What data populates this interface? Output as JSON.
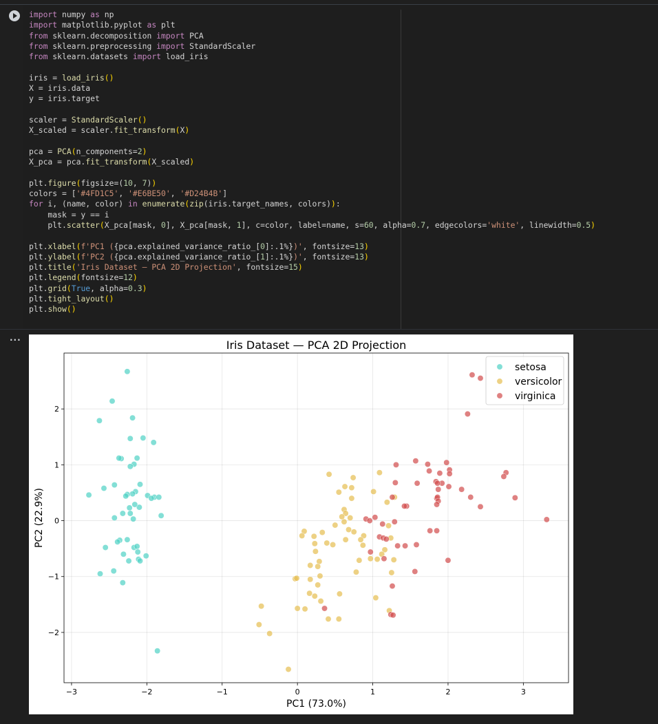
{
  "code_lines": [
    [
      [
        "kw",
        "import"
      ],
      [
        "t",
        " numpy "
      ],
      [
        "kw",
        "as"
      ],
      [
        "t",
        " np"
      ]
    ],
    [
      [
        "kw",
        "import"
      ],
      [
        "t",
        " matplotlib.pyplot "
      ],
      [
        "kw",
        "as"
      ],
      [
        "t",
        " plt"
      ]
    ],
    [
      [
        "kw",
        "from"
      ],
      [
        "t",
        " sklearn.decomposition "
      ],
      [
        "kw",
        "import"
      ],
      [
        "t",
        " PCA"
      ]
    ],
    [
      [
        "kw",
        "from"
      ],
      [
        "t",
        " sklearn.preprocessing "
      ],
      [
        "kw",
        "import"
      ],
      [
        "t",
        " StandardScaler"
      ]
    ],
    [
      [
        "kw",
        "from"
      ],
      [
        "t",
        " sklearn.datasets "
      ],
      [
        "kw",
        "import"
      ],
      [
        "t",
        " load_iris"
      ]
    ],
    [],
    [
      [
        "t",
        "iris = "
      ],
      [
        "bi",
        "load_iris"
      ],
      [
        "par",
        "()"
      ]
    ],
    [
      [
        "t",
        "X = iris.data"
      ]
    ],
    [
      [
        "t",
        "y = iris.target"
      ]
    ],
    [],
    [
      [
        "t",
        "scaler = "
      ],
      [
        "bi",
        "StandardScaler"
      ],
      [
        "par",
        "()"
      ]
    ],
    [
      [
        "t",
        "X_scaled = scaler."
      ],
      [
        "bi",
        "fit_transform"
      ],
      [
        "par",
        "("
      ],
      [
        "t",
        "X"
      ],
      [
        "par",
        ")"
      ]
    ],
    [],
    [
      [
        "t",
        "pca = "
      ],
      [
        "bi",
        "PCA"
      ],
      [
        "par",
        "("
      ],
      [
        "t",
        "n_components="
      ],
      [
        "num",
        "2"
      ],
      [
        "par",
        ")"
      ]
    ],
    [
      [
        "t",
        "X_pca = pca."
      ],
      [
        "bi",
        "fit_transform"
      ],
      [
        "par",
        "("
      ],
      [
        "t",
        "X_scaled"
      ],
      [
        "par",
        ")"
      ]
    ],
    [],
    [
      [
        "t",
        "plt."
      ],
      [
        "bi",
        "figure"
      ],
      [
        "par",
        "("
      ],
      [
        "t",
        "figsize=("
      ],
      [
        "num",
        "10"
      ],
      [
        "t",
        ", "
      ],
      [
        "num",
        "7"
      ],
      [
        "t",
        ")"
      ],
      [
        "par",
        ")"
      ]
    ],
    [
      [
        "t",
        "colors = ["
      ],
      [
        "str",
        "'#4FD1C5'"
      ],
      [
        "t",
        ", "
      ],
      [
        "str",
        "'#E6BE50'"
      ],
      [
        "t",
        ", "
      ],
      [
        "str",
        "'#D24B4B'"
      ],
      [
        "t",
        "]"
      ]
    ],
    [
      [
        "kw",
        "for"
      ],
      [
        "t",
        " i, (name, color) "
      ],
      [
        "kw",
        "in"
      ],
      [
        "t",
        " "
      ],
      [
        "bi",
        "enumerate"
      ],
      [
        "par",
        "("
      ],
      [
        "bi",
        "zip"
      ],
      [
        "t",
        "(iris.target_names, colors)"
      ],
      [
        "par",
        ")"
      ],
      [
        "t",
        ":"
      ]
    ],
    [
      [
        "t",
        "    mask = y == i"
      ]
    ],
    [
      [
        "t",
        "    plt."
      ],
      [
        "bi",
        "scatter"
      ],
      [
        "par",
        "("
      ],
      [
        "t",
        "X_pca[mask, "
      ],
      [
        "num",
        "0"
      ],
      [
        "t",
        "], X_pca[mask, "
      ],
      [
        "num",
        "1"
      ],
      [
        "t",
        "], c=color, label=name, s="
      ],
      [
        "num",
        "60"
      ],
      [
        "t",
        ", alpha="
      ],
      [
        "num",
        "0.7"
      ],
      [
        "t",
        ", edgecolors="
      ],
      [
        "str",
        "'white'"
      ],
      [
        "t",
        ", linewidth="
      ],
      [
        "num",
        "0.5"
      ],
      [
        "par",
        ")"
      ]
    ],
    [],
    [
      [
        "t",
        "plt."
      ],
      [
        "bi",
        "xlabel"
      ],
      [
        "par",
        "("
      ],
      [
        "str",
        "f'PC1 ("
      ],
      [
        "t",
        "{pca.explained_variance_ratio_["
      ],
      [
        "num",
        "0"
      ],
      [
        "t",
        "]:.1%}"
      ],
      [
        "str",
        ")'"
      ],
      [
        "t",
        ", fontsize="
      ],
      [
        "num",
        "13"
      ],
      [
        "par",
        ")"
      ]
    ],
    [
      [
        "t",
        "plt."
      ],
      [
        "bi",
        "ylabel"
      ],
      [
        "par",
        "("
      ],
      [
        "str",
        "f'PC2 ("
      ],
      [
        "t",
        "{pca.explained_variance_ratio_["
      ],
      [
        "num",
        "1"
      ],
      [
        "t",
        "]:.1%}"
      ],
      [
        "str",
        ")'"
      ],
      [
        "t",
        ", fontsize="
      ],
      [
        "num",
        "13"
      ],
      [
        "par",
        ")"
      ]
    ],
    [
      [
        "t",
        "plt."
      ],
      [
        "bi",
        "title"
      ],
      [
        "par",
        "("
      ],
      [
        "str",
        "'Iris Dataset — PCA 2D Projection'"
      ],
      [
        "t",
        ", fontsize="
      ],
      [
        "num",
        "15"
      ],
      [
        "par",
        ")"
      ]
    ],
    [
      [
        "t",
        "plt."
      ],
      [
        "bi",
        "legend"
      ],
      [
        "par",
        "("
      ],
      [
        "t",
        "fontsize="
      ],
      [
        "num",
        "12"
      ],
      [
        "par",
        ")"
      ]
    ],
    [
      [
        "t",
        "plt."
      ],
      [
        "bi",
        "grid"
      ],
      [
        "par",
        "("
      ],
      [
        "const",
        "True"
      ],
      [
        "t",
        ", alpha="
      ],
      [
        "num",
        "0.3"
      ],
      [
        "par",
        ")"
      ]
    ],
    [
      [
        "t",
        "plt."
      ],
      [
        "bi",
        "tight_layout"
      ],
      [
        "par",
        "()"
      ]
    ],
    [
      [
        "t",
        "plt."
      ],
      [
        "bi",
        "show"
      ],
      [
        "par",
        "()"
      ]
    ]
  ],
  "output": {
    "ellipsis": "..."
  },
  "chart_data": {
    "type": "scatter",
    "title": "Iris Dataset — PCA 2D Projection",
    "xlabel": "PC1 (73.0%)",
    "ylabel": "PC2 (22.9%)",
    "xlim": [
      -3.1,
      3.6
    ],
    "ylim": [
      -2.9,
      3.0
    ],
    "xticks": [
      -3,
      -2,
      -1,
      0,
      1,
      2,
      3
    ],
    "yticks": [
      -2,
      -1,
      0,
      1,
      2
    ],
    "xtick_labels": [
      "−3",
      "−2",
      "−1",
      "0",
      "1",
      "2",
      "3"
    ],
    "ytick_labels": [
      "−2",
      "−1",
      "0",
      "1",
      "2"
    ],
    "grid": true,
    "legend_position": "top-right",
    "series": [
      {
        "name": "setosa",
        "color": "#4FD1C5",
        "points": [
          [
            -2.26,
            2.67
          ],
          [
            -2.46,
            2.14
          ],
          [
            -2.63,
            1.79
          ],
          [
            -2.19,
            1.84
          ],
          [
            -2.05,
            1.48
          ],
          [
            -1.91,
            1.4
          ],
          [
            -2.22,
            1.47
          ],
          [
            -2.34,
            1.11
          ],
          [
            -2.37,
            1.12
          ],
          [
            -2.13,
            1.12
          ],
          [
            -2.17,
            1.01
          ],
          [
            -2.22,
            0.97
          ],
          [
            -2.09,
            0.65
          ],
          [
            -2.43,
            0.64
          ],
          [
            -2.57,
            0.58
          ],
          [
            -2.15,
            0.52
          ],
          [
            -2.19,
            0.48
          ],
          [
            -2.26,
            0.47
          ],
          [
            -2.28,
            0.44
          ],
          [
            -2.77,
            0.46
          ],
          [
            -1.99,
            0.45
          ],
          [
            -1.9,
            0.42
          ],
          [
            -1.84,
            0.42
          ],
          [
            -1.94,
            0.4
          ],
          [
            -2.1,
            0.24
          ],
          [
            -2.23,
            0.23
          ],
          [
            -2.16,
            0.29
          ],
          [
            -2.22,
            0.13
          ],
          [
            -2.32,
            0.13
          ],
          [
            -2.43,
            0.05
          ],
          [
            -2.18,
            0.03
          ],
          [
            -1.81,
            0.09
          ],
          [
            -2.36,
            -0.35
          ],
          [
            -2.26,
            -0.34
          ],
          [
            -2.39,
            -0.38
          ],
          [
            -2.17,
            -0.48
          ],
          [
            -2.13,
            -0.46
          ],
          [
            -2.55,
            -0.48
          ],
          [
            -2.31,
            -0.6
          ],
          [
            -2.12,
            -0.56
          ],
          [
            -2.01,
            -0.63
          ],
          [
            -2.11,
            -0.69
          ],
          [
            -2.09,
            -0.72
          ],
          [
            -2.24,
            -0.72
          ],
          [
            -2.62,
            -0.95
          ],
          [
            -2.44,
            -0.9
          ],
          [
            -2.32,
            -1.11
          ],
          [
            -1.86,
            -2.33
          ]
        ]
      },
      {
        "name": "versicolor",
        "color": "#E6BE50",
        "points": [
          [
            0.42,
            0.83
          ],
          [
            0.74,
            0.77
          ],
          [
            1.09,
            0.86
          ],
          [
            0.72,
            0.59
          ],
          [
            0.55,
            0.51
          ],
          [
            0.72,
            0.4
          ],
          [
            0.63,
            0.61
          ],
          [
            1.01,
            0.52
          ],
          [
            1.19,
            0.33
          ],
          [
            1.29,
            0.42
          ],
          [
            0.62,
            0.2
          ],
          [
            0.64,
            0.13
          ],
          [
            0.62,
            -0.02
          ],
          [
            0.7,
            0.05
          ],
          [
            0.59,
            0.07
          ],
          [
            0.5,
            -0.08
          ],
          [
            0.68,
            -0.16
          ],
          [
            0.75,
            -0.2
          ],
          [
            0.88,
            -0.27
          ],
          [
            0.33,
            -0.21
          ],
          [
            0.09,
            -0.19
          ],
          [
            0.06,
            -0.27
          ],
          [
            0.22,
            -0.28
          ],
          [
            0.23,
            -0.41
          ],
          [
            0.39,
            -0.4
          ],
          [
            0.47,
            -0.43
          ],
          [
            0.64,
            -0.34
          ],
          [
            0.84,
            -0.34
          ],
          [
            0.87,
            -0.44
          ],
          [
            1.21,
            -0.09
          ],
          [
            1.24,
            -0.31
          ],
          [
            1.16,
            -0.52
          ],
          [
            1.12,
            -0.6
          ],
          [
            1.28,
            -0.7
          ],
          [
            1.25,
            -0.93
          ],
          [
            1.06,
            -0.69
          ],
          [
            0.97,
            -0.68
          ],
          [
            0.82,
            -0.71
          ],
          [
            0.78,
            -0.92
          ],
          [
            0.24,
            -0.55
          ],
          [
            0.29,
            -0.73
          ],
          [
            0.17,
            -0.8
          ],
          [
            0.27,
            -0.82
          ],
          [
            0.3,
            -0.99
          ],
          [
            0.17,
            -1.05
          ],
          [
            -0.03,
            -1.04
          ],
          [
            -0.01,
            -1.03
          ],
          [
            0.27,
            -1.15
          ],
          [
            0.16,
            -1.3
          ],
          [
            0.23,
            -1.35
          ],
          [
            0.0,
            -1.57
          ],
          [
            0.1,
            -1.58
          ],
          [
            0.31,
            -1.44
          ],
          [
            0.56,
            -1.31
          ],
          [
            1.04,
            -1.38
          ],
          [
            0.41,
            -1.76
          ],
          [
            0.55,
            -1.76
          ],
          [
            -0.48,
            -1.53
          ],
          [
            -0.51,
            -1.86
          ],
          [
            -0.37,
            -2.02
          ],
          [
            1.22,
            -1.61
          ],
          [
            -0.12,
            -2.66
          ]
        ]
      },
      {
        "name": "virginica",
        "color": "#D24B4B",
        "points": [
          [
            2.32,
            2.61
          ],
          [
            2.43,
            2.55
          ],
          [
            2.26,
            1.91
          ],
          [
            1.57,
            1.07
          ],
          [
            1.98,
            1.04
          ],
          [
            1.73,
            1.01
          ],
          [
            1.31,
            1.0
          ],
          [
            1.75,
            0.89
          ],
          [
            2.02,
            0.91
          ],
          [
            2.02,
            0.84
          ],
          [
            1.89,
            0.85
          ],
          [
            2.77,
            0.86
          ],
          [
            2.74,
            0.79
          ],
          [
            1.84,
            0.7
          ],
          [
            1.92,
            0.67
          ],
          [
            1.86,
            0.67
          ],
          [
            1.59,
            0.67
          ],
          [
            1.3,
            0.68
          ],
          [
            2.18,
            0.56
          ],
          [
            2.01,
            0.61
          ],
          [
            1.87,
            0.56
          ],
          [
            1.85,
            0.4
          ],
          [
            1.86,
            0.42
          ],
          [
            1.87,
            0.35
          ],
          [
            2.3,
            0.42
          ],
          [
            2.89,
            0.41
          ],
          [
            1.26,
            0.42
          ],
          [
            1.45,
            0.26
          ],
          [
            1.42,
            0.26
          ],
          [
            2.43,
            0.25
          ],
          [
            1.85,
            0.29
          ],
          [
            3.31,
            0.02
          ],
          [
            0.91,
            0.03
          ],
          [
            0.96,
            0.0
          ],
          [
            1.03,
            0.06
          ],
          [
            1.13,
            -0.06
          ],
          [
            1.29,
            -0.02
          ],
          [
            1.76,
            -0.18
          ],
          [
            1.85,
            -0.18
          ],
          [
            1.09,
            -0.29
          ],
          [
            1.14,
            -0.31
          ],
          [
            1.18,
            -0.33
          ],
          [
            1.33,
            -0.45
          ],
          [
            1.43,
            -0.45
          ],
          [
            1.58,
            -0.43
          ],
          [
            0.97,
            -0.56
          ],
          [
            1.15,
            -0.68
          ],
          [
            2.0,
            -0.71
          ],
          [
            1.56,
            -0.91
          ],
          [
            1.26,
            -1.17
          ],
          [
            0.36,
            -1.57
          ],
          [
            1.24,
            -1.68
          ],
          [
            1.27,
            -1.69
          ]
        ]
      }
    ]
  }
}
